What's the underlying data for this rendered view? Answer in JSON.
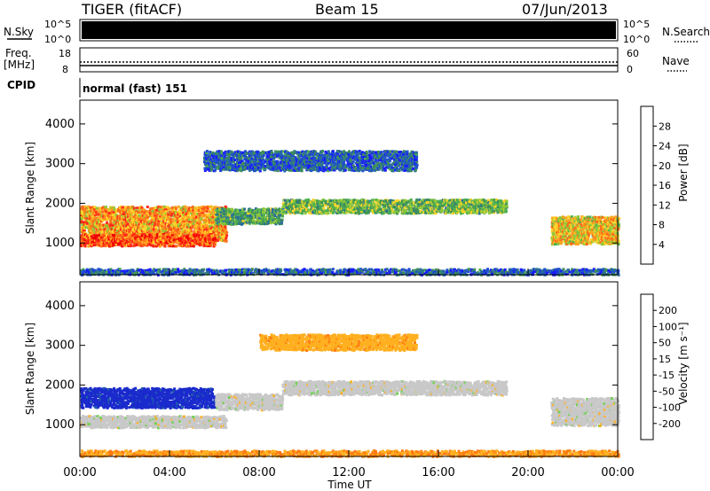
{
  "header": {
    "radar": "TIGER (fitACF)",
    "beam": "Beam 15",
    "date": "07/Jun/2013"
  },
  "strip": {
    "nsky_label": "N.Sky",
    "nsearch_label": "N.Search",
    "freq_label_line1": "Freq.",
    "freq_label_line2": "[MHz]",
    "nave_label": "Nave",
    "cpid_label": "CPID",
    "cpid_value": "normal (fast) 151",
    "noise_ticks": [
      "10^5",
      "10^0"
    ],
    "noise_ticks_right": [
      "10^5",
      "10^0"
    ],
    "freq_ticks": [
      "18",
      "8"
    ],
    "nave_ticks": [
      "60",
      "0"
    ]
  },
  "colors": {
    "power_scale": [
      "#1a1aff",
      "#1f4fd0",
      "#2a6e9a",
      "#3f8f5a",
      "#4fb14f",
      "#8fc83a",
      "#ffd42a",
      "#ffa31f",
      "#ff6a1a",
      "#ff2a1a",
      "#ee0000"
    ],
    "velocity_scale": [
      "#1a2acc",
      "#1f60a8",
      "#2a8f5a",
      "#6fd050",
      "#c8c8c8",
      "#ffb020",
      "#ff7a10",
      "#ff3a10",
      "#dd0000"
    ]
  },
  "chart_data": [
    {
      "type": "heatmap",
      "title": "",
      "ylabel": "Slant Range [km]",
      "xlabel": "Time UT",
      "x_ticks": [
        "00:00",
        "04:00",
        "08:00",
        "12:00",
        "16:00",
        "20:00",
        "00:00"
      ],
      "xlim_hours": [
        0,
        24
      ],
      "y_ticks": [
        1000,
        2000,
        3000,
        4000
      ],
      "ylim": [
        200,
        4600
      ],
      "colorbar": {
        "label": "Power [dB]",
        "ticks": [
          28,
          24,
          20,
          16,
          12,
          8,
          4
        ],
        "range": [
          0,
          32
        ]
      },
      "echo_bands": [
        {
          "t_start": 0.0,
          "t_end": 6.5,
          "range_center": 1500,
          "range_width": 900,
          "value": 22
        },
        {
          "t_start": 0.0,
          "t_end": 6.0,
          "range_center": 1100,
          "range_width": 300,
          "value": 26
        },
        {
          "t_start": 6.0,
          "t_end": 9.0,
          "range_center": 1700,
          "range_width": 400,
          "value": 12
        },
        {
          "t_start": 9.0,
          "t_end": 19.0,
          "range_center": 1950,
          "range_width": 350,
          "value": 14
        },
        {
          "t_start": 5.5,
          "t_end": 15.0,
          "range_center": 3100,
          "range_width": 500,
          "value": 6
        },
        {
          "t_start": 21.0,
          "t_end": 24.0,
          "range_center": 1350,
          "range_width": 700,
          "value": 20
        },
        {
          "t_start": 0.0,
          "t_end": 24.0,
          "range_center": 300,
          "range_width": 150,
          "value": 6
        }
      ]
    },
    {
      "type": "heatmap",
      "title": "",
      "ylabel": "Slant Range [km]",
      "xlabel": "Time UT",
      "x_ticks": [
        "00:00",
        "04:00",
        "08:00",
        "12:00",
        "16:00",
        "20:00",
        "00:00"
      ],
      "xlim_hours": [
        0,
        24
      ],
      "y_ticks": [
        1000,
        2000,
        3000,
        4000
      ],
      "ylim": [
        200,
        4600
      ],
      "colorbar": {
        "label": "Velocity [m s⁻¹]",
        "ticks": [
          200,
          100,
          50,
          15,
          -15,
          -50,
          -100,
          -200
        ],
        "range": [
          -250,
          250
        ]
      },
      "echo_bands": [
        {
          "t_start": 0.0,
          "t_end": 6.0,
          "range_center": 1700,
          "range_width": 500,
          "value": 220
        },
        {
          "t_start": 0.0,
          "t_end": 6.5,
          "range_center": 1100,
          "range_width": 300,
          "value": 0
        },
        {
          "t_start": 6.0,
          "t_end": 9.0,
          "range_center": 1600,
          "range_width": 400,
          "value": 0
        },
        {
          "t_start": 9.0,
          "t_end": 19.0,
          "range_center": 1950,
          "range_width": 350,
          "value": 0
        },
        {
          "t_start": 8.0,
          "t_end": 15.0,
          "range_center": 3100,
          "range_width": 400,
          "value": -60
        },
        {
          "t_start": 21.0,
          "t_end": 24.0,
          "range_center": 1350,
          "range_width": 700,
          "value": 0
        },
        {
          "t_start": 0.0,
          "t_end": 24.0,
          "range_center": 300,
          "range_width": 150,
          "value": -80
        }
      ]
    }
  ]
}
